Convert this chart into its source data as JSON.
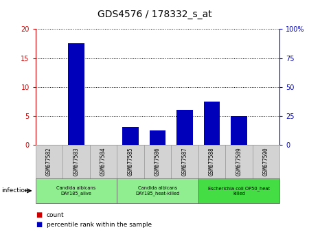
{
  "title": "GDS4576 / 178332_s_at",
  "samples": [
    "GSM677582",
    "GSM677583",
    "GSM677584",
    "GSM677585",
    "GSM677586",
    "GSM677587",
    "GSM677588",
    "GSM677589",
    "GSM677590"
  ],
  "count_values": [
    0,
    16,
    0,
    2,
    1.5,
    4,
    6,
    5,
    0
  ],
  "percentile_values": [
    0,
    17.5,
    0,
    3.0,
    2.5,
    6.0,
    7.5,
    5.0,
    0
  ],
  "ylim_left": [
    0,
    20
  ],
  "ylim_right": [
    0,
    100
  ],
  "yticks_left": [
    0,
    5,
    10,
    15,
    20
  ],
  "yticks_right": [
    0,
    25,
    50,
    75,
    100
  ],
  "ytick_labels_left": [
    "0",
    "5",
    "10",
    "15",
    "20"
  ],
  "ytick_labels_right": [
    "0",
    "25",
    "50",
    "75",
    "100%"
  ],
  "bar_color_count": "#cc0000",
  "bar_color_percentile": "#0000bb",
  "bar_width": 0.6,
  "background_color": "#ffffff",
  "grid_color": "#000000",
  "groups": [
    {
      "label": "Candida albicans\nDAY185_alive",
      "start": 0,
      "end": 3,
      "color": "#90ee90"
    },
    {
      "label": "Candida albicans\nDAY185_heat-killed",
      "start": 3,
      "end": 6,
      "color": "#90ee90"
    },
    {
      "label": "Escherichia coli OP50_heat\nkilled",
      "start": 6,
      "end": 9,
      "color": "#44dd44"
    }
  ],
  "infection_label": "infection",
  "legend_count_label": "count",
  "legend_percentile_label": "percentile rank within the sample",
  "left_axis_color": "#cc0000",
  "right_axis_color": "#0000bb",
  "sample_box_color": "#d3d3d3",
  "sample_box_edge": "#999999"
}
